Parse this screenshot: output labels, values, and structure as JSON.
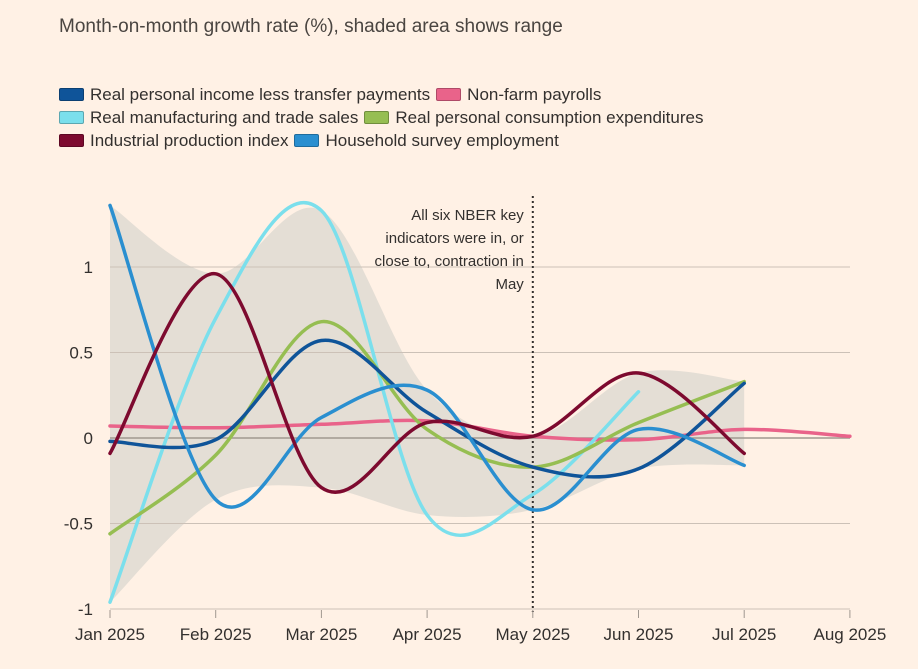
{
  "subtitle": "Month-on-month growth rate (%), shaded area shows range",
  "colors": {
    "background": "#fff1e5",
    "grid": "#ccc1b7",
    "zero_line": "#a09890",
    "range_band": "#e3dcd4"
  },
  "chart_data": {
    "type": "line",
    "title": "",
    "subtitle": "Month-on-month growth rate (%), shaded area shows range",
    "xlabel": "",
    "ylabel": "",
    "x": [
      "Jan 2025",
      "Feb 2025",
      "Mar 2025",
      "Apr 2025",
      "May 2025",
      "Jun 2025",
      "Jul 2025",
      "Aug 2025"
    ],
    "yticks": [
      "-1",
      "-0.5",
      "0",
      "0.5",
      "1"
    ],
    "ylim": [
      -1,
      1.35
    ],
    "grid": true,
    "legend_position": "top-left",
    "series": [
      {
        "name": "Real personal income less transfer payments",
        "color": "#0f5499",
        "values": [
          -0.02,
          -0.01,
          0.57,
          0.15,
          -0.17,
          -0.18,
          0.32,
          null
        ]
      },
      {
        "name": "Non-farm payrolls",
        "color": "#e9638a",
        "values": [
          0.07,
          0.06,
          0.08,
          0.1,
          0.01,
          -0.01,
          0.05,
          0.01
        ]
      },
      {
        "name": "Real manufacturing and trade sales",
        "color": "#7bdfec",
        "values": [
          -0.96,
          0.7,
          1.33,
          -0.45,
          -0.33,
          0.27,
          null,
          null
        ]
      },
      {
        "name": "Real personal consumption expenditures",
        "color": "#96be52",
        "values": [
          -0.56,
          -0.1,
          0.68,
          0.05,
          -0.17,
          0.09,
          0.33,
          null
        ]
      },
      {
        "name": "Industrial production index",
        "color": "#7d0a2f",
        "values": [
          -0.09,
          0.96,
          -0.29,
          0.09,
          0.01,
          0.38,
          -0.09,
          null
        ]
      },
      {
        "name": "Household survey employment",
        "color": "#2a8fd0",
        "values": [
          1.36,
          -0.36,
          0.12,
          0.28,
          -0.42,
          0.05,
          -0.16,
          null
        ]
      }
    ],
    "range_band": {
      "upper": [
        1.36,
        0.96,
        1.33,
        0.28,
        0.01,
        0.38,
        0.33
      ],
      "lower": [
        -0.96,
        -0.36,
        -0.29,
        -0.45,
        -0.42,
        -0.18,
        -0.16
      ]
    },
    "annotation": {
      "x": "May 2025",
      "lines": [
        "All six NBER key",
        "indicators were in, or",
        "close to, contraction in",
        "May"
      ]
    }
  }
}
